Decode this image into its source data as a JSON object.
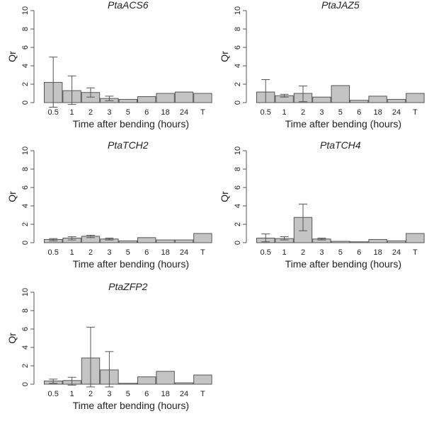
{
  "chart_data": [
    {
      "type": "bar",
      "title": "PtaACS6",
      "xlabel": "Time after bending (hours)",
      "ylabel": "Qr",
      "ylim": [
        0,
        10
      ],
      "yticks": [
        "0",
        "2",
        "4",
        "6",
        "8",
        "10"
      ],
      "categories": [
        "0.5",
        "1",
        "2",
        "3",
        "5",
        "6",
        "18",
        "24",
        "T"
      ],
      "values": [
        2.2,
        1.3,
        1.1,
        0.45,
        0.35,
        0.65,
        1.0,
        1.15,
        1.0
      ],
      "error_low": [
        -0.5,
        -0.2,
        0.6,
        0.2,
        null,
        null,
        null,
        null,
        null
      ],
      "error_high": [
        4.95,
        2.9,
        1.6,
        0.7,
        null,
        null,
        null,
        null,
        null
      ]
    },
    {
      "type": "bar",
      "title": "PtaJAZ5",
      "xlabel": "Time after bending (hours)",
      "ylabel": "Qr",
      "ylim": [
        0,
        10
      ],
      "yticks": [
        "0",
        "2",
        "4",
        "6",
        "8",
        "10"
      ],
      "categories": [
        "0.5",
        "1",
        "2",
        "3",
        "5",
        "6",
        "18",
        "24",
        "T"
      ],
      "values": [
        1.15,
        0.75,
        1.0,
        0.6,
        1.85,
        0.25,
        0.7,
        0.35,
        1.0
      ],
      "error_low": [
        0.0,
        0.6,
        0.1,
        null,
        null,
        null,
        null,
        null,
        null
      ],
      "error_high": [
        2.5,
        0.9,
        1.8,
        null,
        null,
        null,
        null,
        null,
        null
      ]
    },
    {
      "type": "bar",
      "title": "PtaTCH2",
      "xlabel": "Time after bending (hours)",
      "ylabel": "Qr",
      "ylim": [
        0,
        10
      ],
      "yticks": [
        "0",
        "2",
        "4",
        "6",
        "8",
        "10"
      ],
      "categories": [
        "0.5",
        "1",
        "2",
        "3",
        "5",
        "6",
        "18",
        "24",
        "T"
      ],
      "values": [
        0.35,
        0.5,
        0.7,
        0.4,
        0.2,
        0.55,
        0.3,
        0.3,
        1.0
      ],
      "error_low": [
        0.2,
        0.3,
        0.55,
        0.3,
        null,
        null,
        null,
        null,
        null
      ],
      "error_high": [
        0.45,
        0.65,
        0.8,
        0.5,
        null,
        null,
        null,
        null,
        null
      ]
    },
    {
      "type": "bar",
      "title": "PtaTCH4",
      "xlabel": "Time after bending (hours)",
      "ylabel": "Qr",
      "ylim": [
        0,
        10
      ],
      "yticks": [
        "0",
        "2",
        "4",
        "6",
        "8",
        "10"
      ],
      "categories": [
        "0.5",
        "1",
        "2",
        "3",
        "5",
        "6",
        "18",
        "24",
        "T"
      ],
      "values": [
        0.5,
        0.45,
        2.75,
        0.4,
        0.15,
        0.1,
        0.35,
        0.2,
        1.0
      ],
      "error_low": [
        0.1,
        0.3,
        1.3,
        0.3,
        null,
        null,
        null,
        null,
        null
      ],
      "error_high": [
        0.95,
        0.65,
        4.2,
        0.5,
        null,
        null,
        null,
        null,
        null
      ]
    },
    {
      "type": "bar",
      "title": "PtaZFP2",
      "xlabel": "Time after bending (hours)",
      "ylabel": "Qr",
      "ylim": [
        0,
        10
      ],
      "yticks": [
        "0",
        "2",
        "4",
        "6",
        "8",
        "10"
      ],
      "categories": [
        "0.5",
        "1",
        "2",
        "3",
        "5",
        "6",
        "18",
        "24",
        "T"
      ],
      "values": [
        0.35,
        0.4,
        2.85,
        1.55,
        0.1,
        0.8,
        1.4,
        0.15,
        1.0
      ],
      "error_low": [
        0.1,
        -0.1,
        -0.3,
        -0.3,
        null,
        null,
        null,
        null,
        null
      ],
      "error_high": [
        0.55,
        0.75,
        6.2,
        3.55,
        null,
        null,
        null,
        null,
        null
      ]
    }
  ]
}
